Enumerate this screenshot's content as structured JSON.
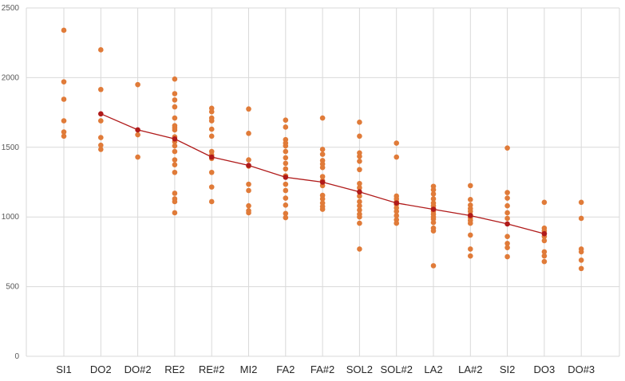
{
  "chart_data": {
    "type": "scatter",
    "title": "",
    "xlabel": "",
    "ylabel": "",
    "categories": [
      "SI1",
      "DO2",
      "DO#2",
      "RE2",
      "RE#2",
      "MI2",
      "FA2",
      "FA#2",
      "SOL2",
      "SOL#2",
      "LA2",
      "LA#2",
      "SI2",
      "DO3",
      "DO#3"
    ],
    "ylim": [
      0,
      2500
    ],
    "yticks": [
      0,
      500,
      1000,
      1500,
      2000,
      2500
    ],
    "ytick_labels": [
      "0",
      "500",
      "1000",
      "1500",
      "2000",
      "2500"
    ],
    "grid": "vertical and horizontal",
    "legend": "none",
    "series": [
      {
        "type": "scatter",
        "color": "#e07b39",
        "points": [
          [
            0,
            2340
          ],
          [
            0,
            1970
          ],
          [
            0,
            1845
          ],
          [
            0,
            1690
          ],
          [
            0,
            1610
          ],
          [
            0,
            1580
          ],
          [
            1,
            2200
          ],
          [
            1,
            1915
          ],
          [
            1,
            1690
          ],
          [
            1,
            1570
          ],
          [
            1,
            1515
          ],
          [
            1,
            1485
          ],
          [
            2,
            1950
          ],
          [
            2,
            1590
          ],
          [
            2,
            1430
          ],
          [
            3,
            1990
          ],
          [
            3,
            1885
          ],
          [
            3,
            1840
          ],
          [
            3,
            1790
          ],
          [
            3,
            1710
          ],
          [
            3,
            1655
          ],
          [
            3,
            1640
          ],
          [
            3,
            1625
          ],
          [
            3,
            1575
          ],
          [
            3,
            1540
          ],
          [
            3,
            1510
          ],
          [
            3,
            1470
          ],
          [
            3,
            1410
          ],
          [
            3,
            1375
          ],
          [
            3,
            1320
          ],
          [
            3,
            1170
          ],
          [
            3,
            1130
          ],
          [
            3,
            1110
          ],
          [
            3,
            1030
          ],
          [
            4,
            1780
          ],
          [
            4,
            1755
          ],
          [
            4,
            1710
          ],
          [
            4,
            1690
          ],
          [
            4,
            1630
          ],
          [
            4,
            1580
          ],
          [
            4,
            1470
          ],
          [
            4,
            1445
          ],
          [
            4,
            1420
          ],
          [
            4,
            1320
          ],
          [
            4,
            1215
          ],
          [
            4,
            1110
          ],
          [
            5,
            1775
          ],
          [
            5,
            1600
          ],
          [
            5,
            1410
          ],
          [
            5,
            1365
          ],
          [
            5,
            1235
          ],
          [
            5,
            1190
          ],
          [
            5,
            1080
          ],
          [
            5,
            1045
          ],
          [
            5,
            1030
          ],
          [
            6,
            1695
          ],
          [
            6,
            1645
          ],
          [
            6,
            1555
          ],
          [
            6,
            1530
          ],
          [
            6,
            1510
          ],
          [
            6,
            1470
          ],
          [
            6,
            1425
          ],
          [
            6,
            1385
          ],
          [
            6,
            1345
          ],
          [
            6,
            1295
          ],
          [
            6,
            1235
          ],
          [
            6,
            1190
          ],
          [
            6,
            1135
          ],
          [
            6,
            1085
          ],
          [
            6,
            1025
          ],
          [
            6,
            995
          ],
          [
            7,
            1710
          ],
          [
            7,
            1485
          ],
          [
            7,
            1450
          ],
          [
            7,
            1405
          ],
          [
            7,
            1380
          ],
          [
            7,
            1355
          ],
          [
            7,
            1290
          ],
          [
            7,
            1260
          ],
          [
            7,
            1225
          ],
          [
            7,
            1155
          ],
          [
            7,
            1130
          ],
          [
            7,
            1100
          ],
          [
            7,
            1075
          ],
          [
            7,
            1055
          ],
          [
            8,
            1680
          ],
          [
            8,
            1580
          ],
          [
            8,
            1460
          ],
          [
            8,
            1435
          ],
          [
            8,
            1400
          ],
          [
            8,
            1340
          ],
          [
            8,
            1240
          ],
          [
            8,
            1210
          ],
          [
            8,
            1150
          ],
          [
            8,
            1110
          ],
          [
            8,
            1080
          ],
          [
            8,
            1050
          ],
          [
            8,
            1020
          ],
          [
            8,
            1000
          ],
          [
            8,
            955
          ],
          [
            8,
            770
          ],
          [
            9,
            1530
          ],
          [
            9,
            1430
          ],
          [
            9,
            1150
          ],
          [
            9,
            1130
          ],
          [
            9,
            1110
          ],
          [
            9,
            1090
          ],
          [
            9,
            1065
          ],
          [
            9,
            1040
          ],
          [
            9,
            1010
          ],
          [
            9,
            980
          ],
          [
            9,
            955
          ],
          [
            10,
            1220
          ],
          [
            10,
            1195
          ],
          [
            10,
            1165
          ],
          [
            10,
            1130
          ],
          [
            10,
            1100
          ],
          [
            10,
            1080
          ],
          [
            10,
            1060
          ],
          [
            10,
            1040
          ],
          [
            10,
            1020
          ],
          [
            10,
            1000
          ],
          [
            10,
            985
          ],
          [
            10,
            960
          ],
          [
            10,
            920
          ],
          [
            10,
            900
          ],
          [
            10,
            650
          ],
          [
            11,
            1225
          ],
          [
            11,
            1125
          ],
          [
            11,
            1085
          ],
          [
            11,
            1060
          ],
          [
            11,
            1040
          ],
          [
            11,
            1015
          ],
          [
            11,
            995
          ],
          [
            11,
            975
          ],
          [
            11,
            955
          ],
          [
            11,
            870
          ],
          [
            11,
            770
          ],
          [
            11,
            720
          ],
          [
            12,
            1495
          ],
          [
            12,
            1175
          ],
          [
            12,
            1135
          ],
          [
            12,
            1080
          ],
          [
            12,
            1030
          ],
          [
            12,
            990
          ],
          [
            12,
            860
          ],
          [
            12,
            810
          ],
          [
            12,
            780
          ],
          [
            12,
            715
          ],
          [
            13,
            1105
          ],
          [
            13,
            920
          ],
          [
            13,
            900
          ],
          [
            13,
            880
          ],
          [
            13,
            860
          ],
          [
            13,
            830
          ],
          [
            13,
            750
          ],
          [
            13,
            720
          ],
          [
            13,
            680
          ],
          [
            14,
            1105
          ],
          [
            14,
            990
          ],
          [
            14,
            770
          ],
          [
            14,
            750
          ],
          [
            14,
            690
          ],
          [
            14,
            630
          ]
        ]
      },
      {
        "type": "line",
        "color": "#b01a1a",
        "markers": true,
        "values": [
          null,
          1740,
          1625,
          1560,
          1430,
          1370,
          1285,
          1250,
          1180,
          1100,
          1055,
          1010,
          950,
          880,
          null
        ]
      }
    ]
  }
}
